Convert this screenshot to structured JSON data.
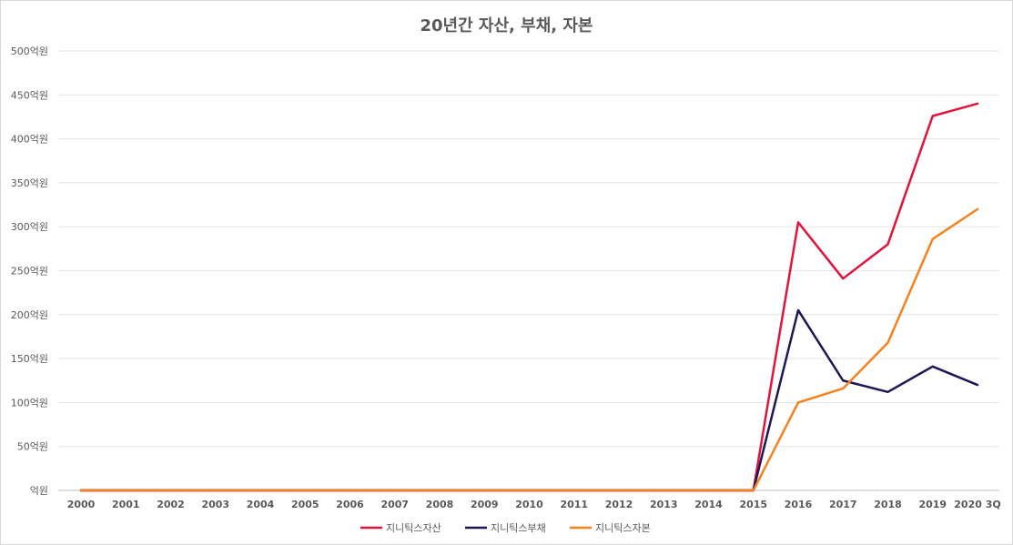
{
  "chart_data": {
    "type": "line",
    "title": "20년간 자산, 부채, 자본",
    "xlabel": "",
    "ylabel": "",
    "ylim": [
      0,
      500
    ],
    "yticks": [
      {
        "value": 0,
        "label": "억원"
      },
      {
        "value": 50,
        "label": "50억원"
      },
      {
        "value": 100,
        "label": "100억원"
      },
      {
        "value": 150,
        "label": "150억원"
      },
      {
        "value": 200,
        "label": "200억원"
      },
      {
        "value": 250,
        "label": "250억원"
      },
      {
        "value": 300,
        "label": "300억원"
      },
      {
        "value": 350,
        "label": "350억원"
      },
      {
        "value": 400,
        "label": "400억원"
      },
      {
        "value": 450,
        "label": "450억원"
      },
      {
        "value": 500,
        "label": "500억원"
      }
    ],
    "categories": [
      "2000",
      "2001",
      "2002",
      "2003",
      "2004",
      "2005",
      "2006",
      "2007",
      "2008",
      "2009",
      "2010",
      "2011",
      "2012",
      "2013",
      "2014",
      "2015",
      "2016",
      "2017",
      "2018",
      "2019",
      "2020 3Q"
    ],
    "grid": true,
    "legend_position": "bottom",
    "series": [
      {
        "name": "지니틱스자산",
        "color": "#e0143c",
        "values": [
          0,
          0,
          0,
          0,
          0,
          0,
          0,
          0,
          0,
          0,
          0,
          0,
          0,
          0,
          0,
          0,
          305,
          241,
          280,
          426,
          440
        ]
      },
      {
        "name": "지니틱스부채",
        "color": "#1f1654",
        "values": [
          0,
          0,
          0,
          0,
          0,
          0,
          0,
          0,
          0,
          0,
          0,
          0,
          0,
          0,
          0,
          0,
          205,
          125,
          112,
          141,
          120
        ]
      },
      {
        "name": "지니틱스자본",
        "color": "#f5821f",
        "values": [
          0,
          0,
          0,
          0,
          0,
          0,
          0,
          0,
          0,
          0,
          0,
          0,
          0,
          0,
          0,
          0,
          100,
          116,
          168,
          286,
          320
        ]
      }
    ]
  }
}
